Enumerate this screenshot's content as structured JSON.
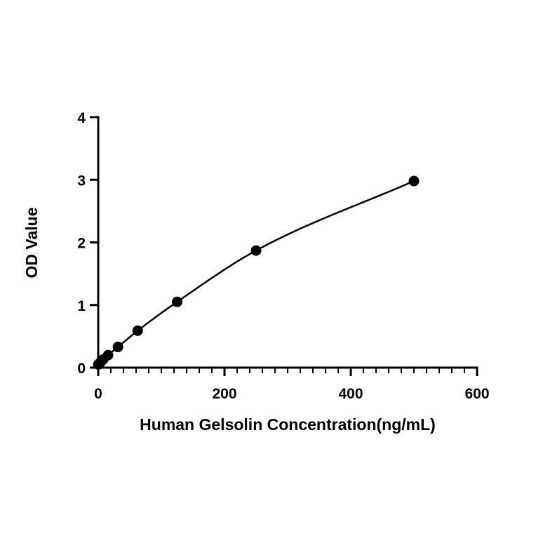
{
  "chart_data": {
    "type": "scatter",
    "title": "",
    "xlabel": "Human Gelsolin Concentration(ng/mL)",
    "ylabel": "OD Value",
    "xlim": [
      0,
      600
    ],
    "ylim": [
      0,
      4
    ],
    "x_ticks": [
      "0",
      "200",
      "400",
      "600"
    ],
    "y_ticks": [
      "0",
      "1",
      "2",
      "3",
      "4"
    ],
    "grid": false,
    "legend": "none",
    "fit_line": true,
    "series": [
      {
        "x": [
          0,
          3.9,
          7.8,
          15.6,
          31.25,
          62.5,
          125,
          250,
          500
        ],
        "y": [
          0.05,
          0.09,
          0.13,
          0.2,
          0.33,
          0.59,
          1.05,
          1.87,
          2.98
        ]
      }
    ]
  },
  "colors": {
    "ink": "#000000",
    "background": "#ffffff"
  }
}
